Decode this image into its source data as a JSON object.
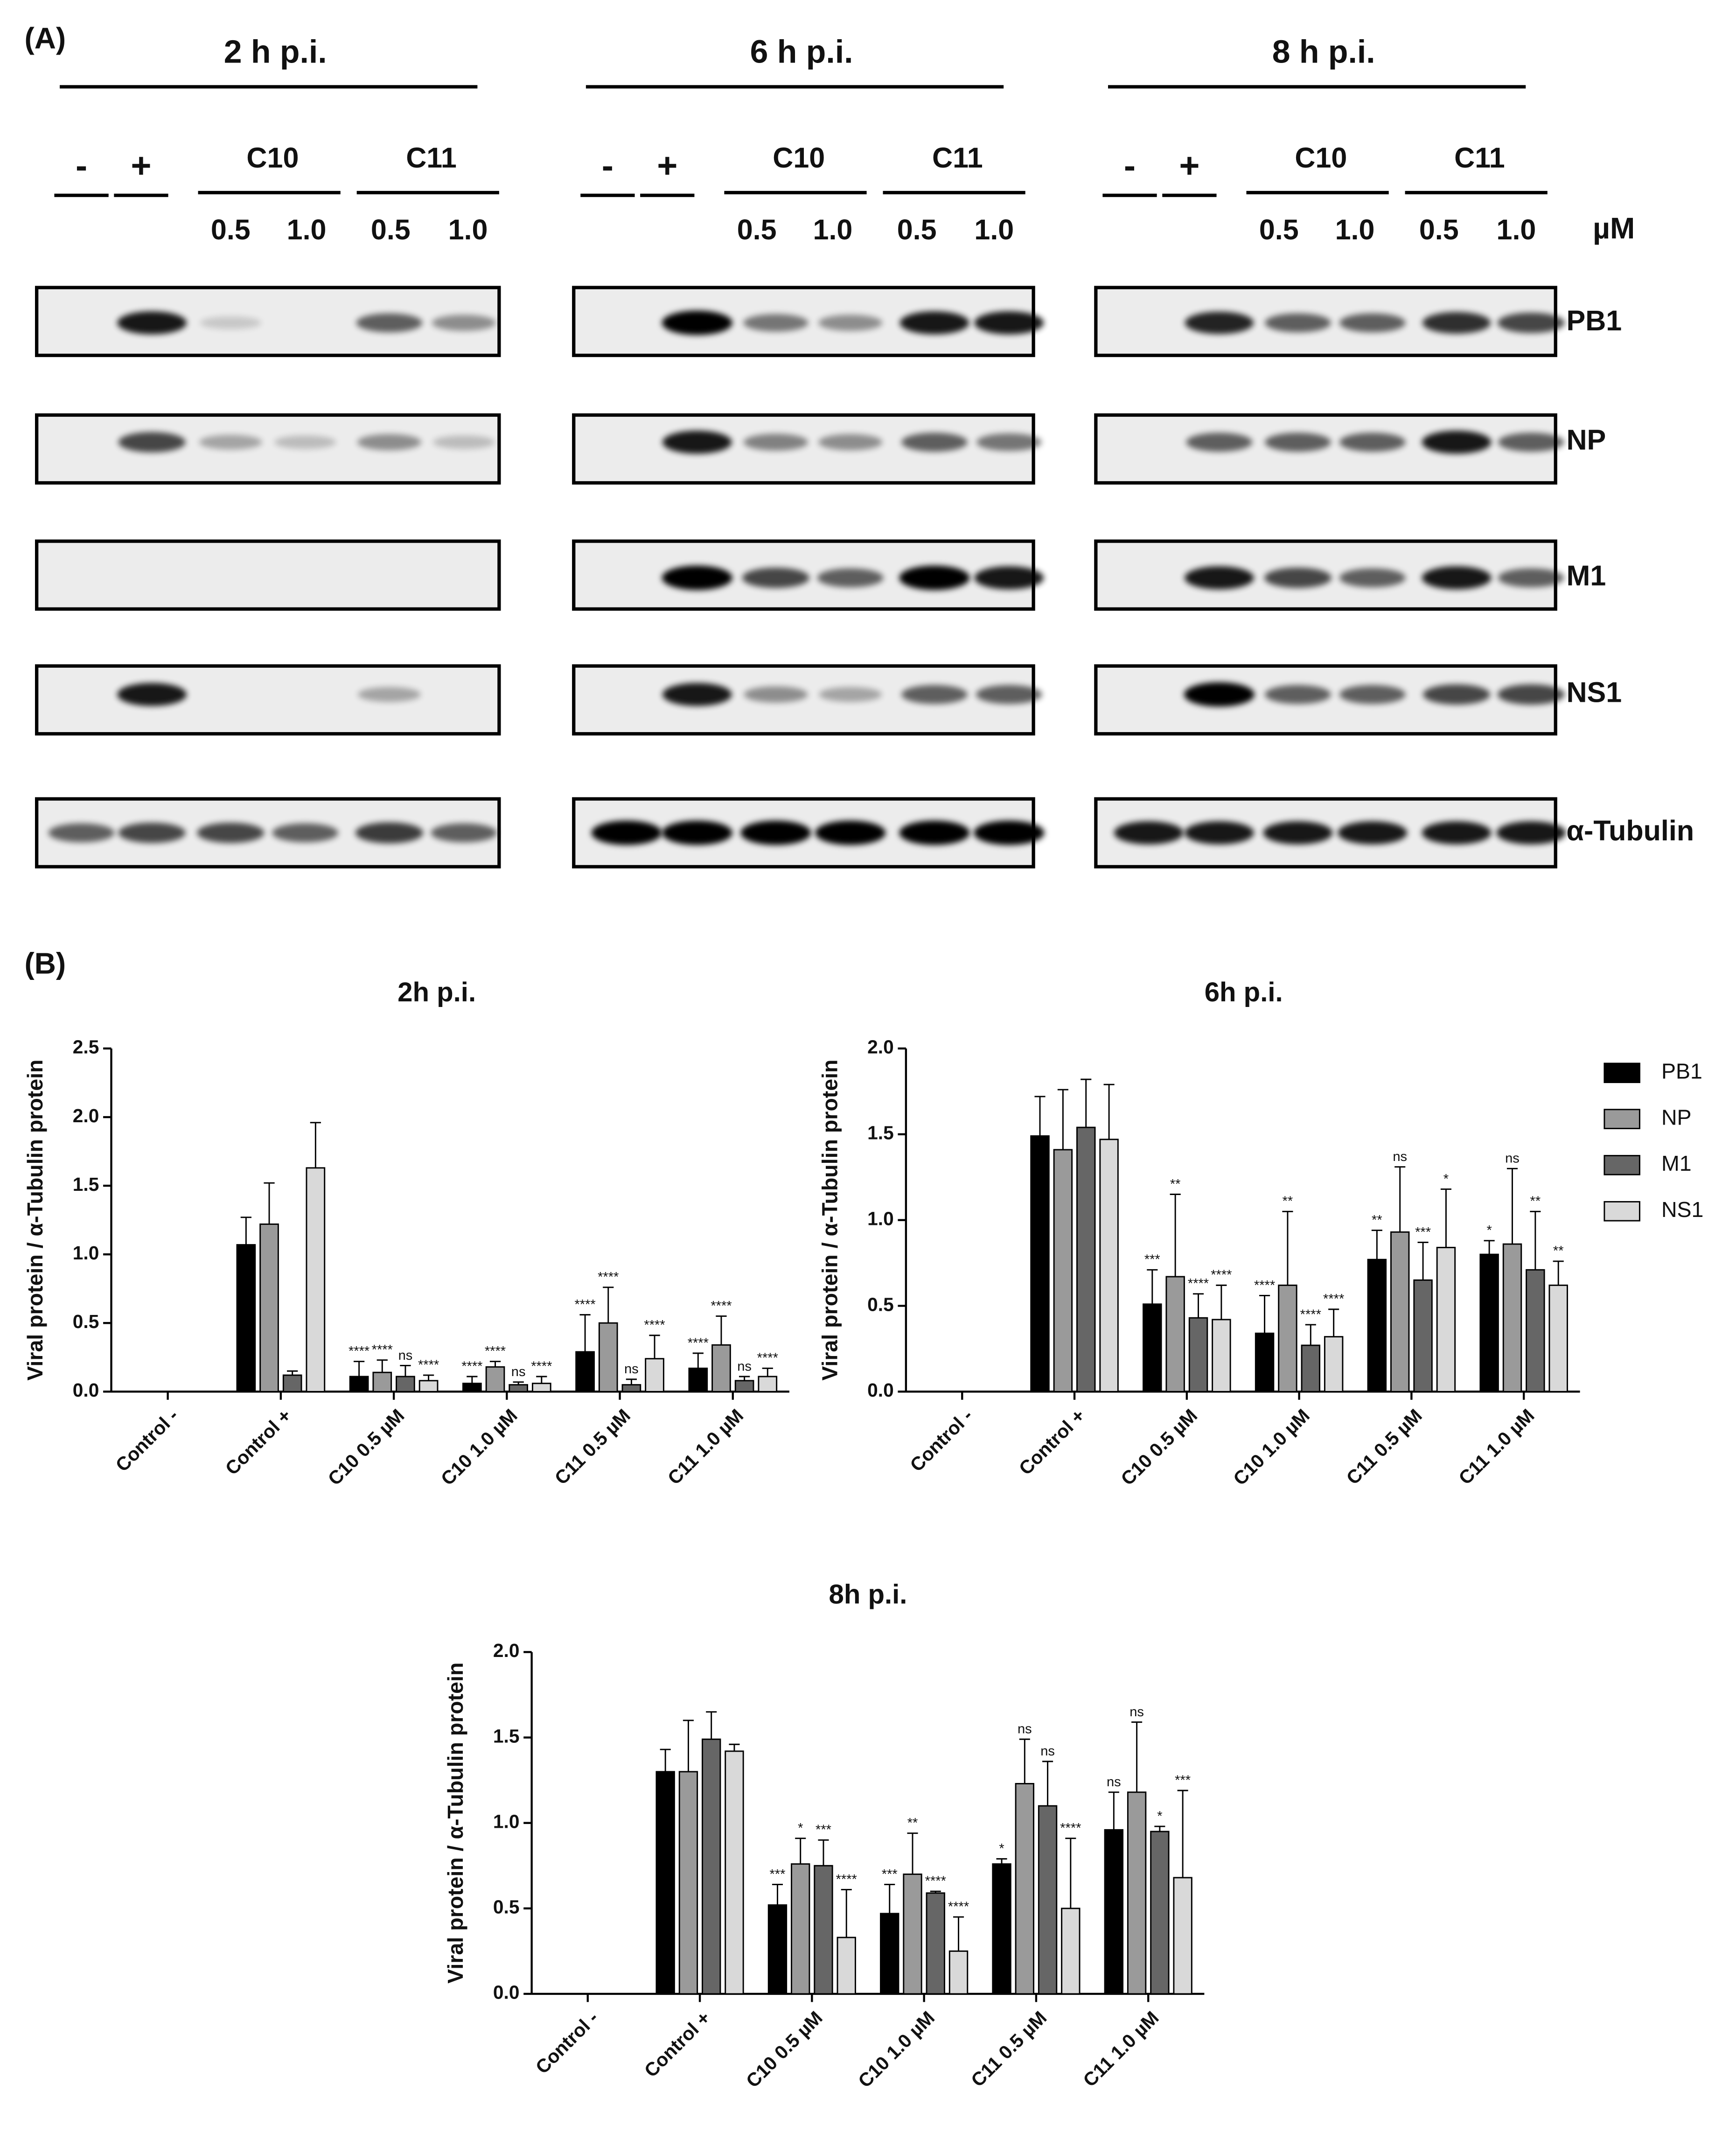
{
  "panel_a": {
    "label": "(A)",
    "timepoints": [
      {
        "title": "2 h p.i.",
        "control_labels": [
          "-",
          "+"
        ],
        "compounds": [
          "C10",
          "C11"
        ],
        "doses": [
          "0.5",
          "1.0",
          "0.5",
          "1.0"
        ]
      },
      {
        "title": "6 h p.i.",
        "control_labels": [
          "-",
          "+"
        ],
        "compounds": [
          "C10",
          "C11"
        ],
        "doses": [
          "0.5",
          "1.0",
          "0.5",
          "1.0"
        ]
      },
      {
        "title": "8 h p.i.",
        "control_labels": [
          "-",
          "+"
        ],
        "compounds": [
          "C10",
          "C11"
        ],
        "doses": [
          "0.5",
          "1.0",
          "0.5",
          "1.0"
        ]
      }
    ],
    "unit": "µM",
    "proteins": [
      "PB1",
      "NP",
      "M1",
      "NS1",
      "α-Tubulin"
    ]
  },
  "panel_b": {
    "label": "(B)"
  },
  "chart_data": [
    {
      "type": "bar",
      "title": "2h p.i.",
      "y_label": "Viral protein / α-Tubulin protein",
      "categories": [
        "Control -",
        "Control +",
        "C10 0.5 µM",
        "C10 1.0 µM",
        "C11 0.5 µM",
        "C11 1.0 µM"
      ],
      "ylim": [
        0,
        2.5
      ],
      "yticks": [
        {
          "value": 0,
          "label": "0.0"
        },
        0.5,
        {
          "value": 1,
          "label": "1.0"
        },
        1.5,
        {
          "value": 2,
          "label": "2.0"
        },
        2.5
      ],
      "legend": false,
      "series": [
        {
          "color": "#000000",
          "values": [
            0,
            1.07,
            0.11,
            0.06,
            0.29,
            0.17
          ],
          "errors": [
            null,
            0.2,
            0.11,
            0.05,
            0.27,
            0.11
          ],
          "significance": [
            null,
            null,
            "****",
            "****",
            "****",
            "****"
          ]
        },
        {
          "color": "#9a9a9a",
          "values": [
            0,
            1.22,
            0.14,
            0.18,
            0.5,
            0.34
          ],
          "errors": [
            null,
            0.3,
            0.09,
            0.04,
            0.26,
            0.21
          ],
          "significance": [
            null,
            null,
            "****",
            "****",
            "****",
            "****"
          ]
        },
        {
          "color": "#666666",
          "values": [
            0,
            0.12,
            0.11,
            0.05,
            0.05,
            0.08
          ],
          "errors": [
            null,
            0.03,
            0.08,
            0.02,
            0.04,
            0.03
          ],
          "significance": [
            null,
            null,
            "ns",
            "ns",
            "ns",
            "ns"
          ]
        },
        {
          "color": "#d9d9d9",
          "values": [
            0,
            1.63,
            0.08,
            0.06,
            0.24,
            0.11
          ],
          "errors": [
            null,
            0.33,
            0.04,
            0.05,
            0.17,
            0.06
          ],
          "significance": [
            null,
            null,
            "****",
            "****",
            "****",
            "****"
          ]
        }
      ]
    },
    {
      "type": "bar",
      "title": "6h p.i.",
      "y_label": "Viral protein / α-Tubulin protein",
      "categories": [
        "Control -",
        "Control +",
        "C10 0.5 µM",
        "C10 1.0 µM",
        "C11 0.5 µM",
        "C11 1.0 µM"
      ],
      "ylim": [
        0,
        2
      ],
      "yticks": [
        {
          "value": 0,
          "label": "0.0"
        },
        0.5,
        {
          "value": 1,
          "label": "1.0"
        },
        1.5,
        {
          "value": 2,
          "label": "2.0"
        }
      ],
      "legend": "right",
      "series": [
        {
          "name": "PB1",
          "color": "#000000",
          "values": [
            0,
            1.49,
            0.51,
            0.34,
            0.77,
            0.8
          ],
          "errors": [
            null,
            0.23,
            0.2,
            0.22,
            0.17,
            0.08
          ],
          "significance": [
            null,
            null,
            "***",
            "****",
            "**",
            "*"
          ]
        },
        {
          "name": "NP",
          "color": "#9a9a9a",
          "values": [
            0,
            1.41,
            0.67,
            0.62,
            0.93,
            0.86
          ],
          "errors": [
            null,
            0.35,
            0.48,
            0.43,
            0.38,
            0.44
          ],
          "significance": [
            null,
            null,
            "**",
            "**",
            "ns",
            "ns"
          ]
        },
        {
          "name": "M1",
          "color": "#666666",
          "values": [
            0,
            1.54,
            0.43,
            0.27,
            0.65,
            0.71
          ],
          "errors": [
            null,
            0.28,
            0.14,
            0.12,
            0.22,
            0.34
          ],
          "significance": [
            null,
            null,
            "****",
            "****",
            "***",
            "**"
          ]
        },
        {
          "name": "NS1",
          "color": "#d9d9d9",
          "values": [
            0,
            1.47,
            0.42,
            0.32,
            0.84,
            0.62
          ],
          "errors": [
            null,
            0.32,
            0.2,
            0.16,
            0.34,
            0.14
          ],
          "significance": [
            null,
            null,
            "****",
            "****",
            "*",
            "**"
          ]
        }
      ]
    },
    {
      "type": "bar",
      "title": "8h p.i.",
      "y_label": "Viral protein / α-Tubulin protein",
      "categories": [
        "Control -",
        "Control +",
        "C10 0.5 µM",
        "C10 1.0 µM",
        "C11 0.5 µM",
        "C11 1.0 µM"
      ],
      "ylim": [
        0,
        2
      ],
      "yticks": [
        {
          "value": 0,
          "label": "0.0"
        },
        0.5,
        {
          "value": 1,
          "label": "1.0"
        },
        1.5,
        {
          "value": 2,
          "label": "2.0"
        }
      ],
      "legend": false,
      "series": [
        {
          "color": "#000000",
          "values": [
            0,
            1.3,
            0.52,
            0.47,
            0.76,
            0.96
          ],
          "errors": [
            null,
            0.13,
            0.12,
            0.17,
            0.03,
            0.22
          ],
          "significance": [
            null,
            null,
            "***",
            "***",
            "*",
            "ns"
          ]
        },
        {
          "color": "#9a9a9a",
          "values": [
            0,
            1.3,
            0.76,
            0.7,
            1.23,
            1.18
          ],
          "errors": [
            null,
            0.3,
            0.15,
            0.24,
            0.26,
            0.41
          ],
          "significance": [
            null,
            null,
            "*",
            "**",
            "ns",
            "ns"
          ]
        },
        {
          "color": "#666666",
          "values": [
            0,
            1.49,
            0.75,
            0.59,
            1.1,
            0.95
          ],
          "errors": [
            null,
            0.16,
            0.15,
            0.01,
            0.26,
            0.03
          ],
          "significance": [
            null,
            null,
            "***",
            "****",
            "ns",
            "*"
          ]
        },
        {
          "color": "#d9d9d9",
          "values": [
            0,
            1.42,
            0.33,
            0.25,
            0.5,
            0.68
          ],
          "errors": [
            null,
            0.04,
            0.28,
            0.2,
            0.41,
            0.51
          ],
          "significance": [
            null,
            null,
            "****",
            "****",
            "****",
            "***"
          ]
        }
      ]
    }
  ]
}
